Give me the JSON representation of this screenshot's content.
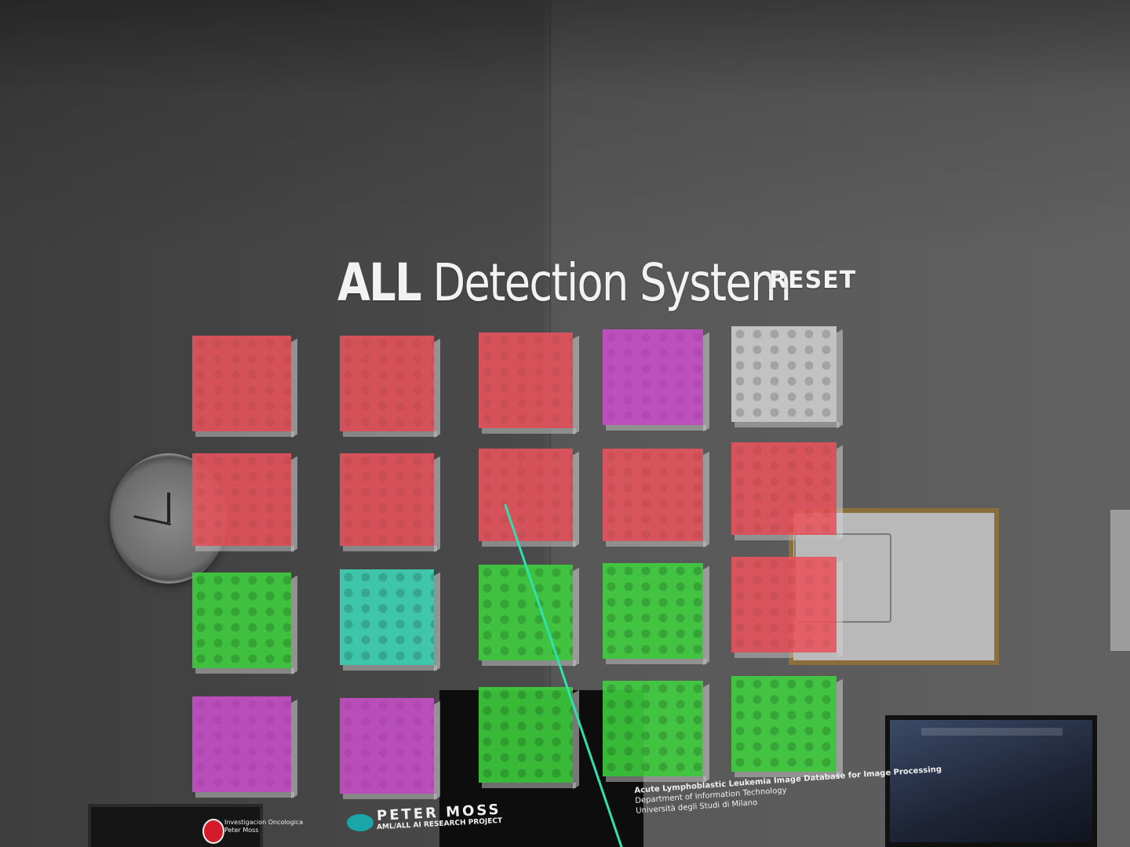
{
  "app": {
    "title_bold": "ALL",
    "title_rest": " Detection System",
    "reset_label": "RESET"
  },
  "colors": {
    "positive": "#e8535c",
    "negative": "#3fd23f",
    "pending": "#c94fc9",
    "cyan": "#3fd7b8",
    "unclassified": "#d0d0d0",
    "laser": "#2fe0b0"
  },
  "grid": {
    "rows": 4,
    "columns": 5,
    "tiles": [
      {
        "row": 1,
        "col": 1,
        "state": "positive"
      },
      {
        "row": 1,
        "col": 2,
        "state": "positive"
      },
      {
        "row": 1,
        "col": 3,
        "state": "positive"
      },
      {
        "row": 1,
        "col": 4,
        "state": "pending"
      },
      {
        "row": 1,
        "col": 5,
        "state": "unclassified"
      },
      {
        "row": 2,
        "col": 1,
        "state": "positive"
      },
      {
        "row": 2,
        "col": 2,
        "state": "positive"
      },
      {
        "row": 2,
        "col": 3,
        "state": "positive"
      },
      {
        "row": 2,
        "col": 4,
        "state": "positive"
      },
      {
        "row": 2,
        "col": 5,
        "state": "positive"
      },
      {
        "row": 3,
        "col": 1,
        "state": "negative"
      },
      {
        "row": 3,
        "col": 2,
        "state": "cyan"
      },
      {
        "row": 3,
        "col": 3,
        "state": "negative"
      },
      {
        "row": 3,
        "col": 4,
        "state": "negative"
      },
      {
        "row": 3,
        "col": 5,
        "state": "positive"
      },
      {
        "row": 4,
        "col": 1,
        "state": "pending"
      },
      {
        "row": 4,
        "col": 2,
        "state": "pending"
      },
      {
        "row": 4,
        "col": 3,
        "state": "negative"
      },
      {
        "row": 4,
        "col": 4,
        "state": "negative"
      },
      {
        "row": 4,
        "col": 5,
        "state": "negative"
      }
    ]
  },
  "posters": {
    "left_line1": "Investigacion Oncologica",
    "left_line2": "Peter Moss",
    "mid_title": "PETER MOSS",
    "mid_subtitle": "AML/ALL AI RESEARCH PROJECT",
    "right_line1": "Acute Lymphoblastic Leukemia Image Database for Image Processing",
    "right_line2": "Department of Information Technology",
    "right_line3": "Università degli Studi di Milano"
  },
  "icons": {
    "laser": "laser-pointer-ray",
    "clock": "wall-clock-icon"
  }
}
